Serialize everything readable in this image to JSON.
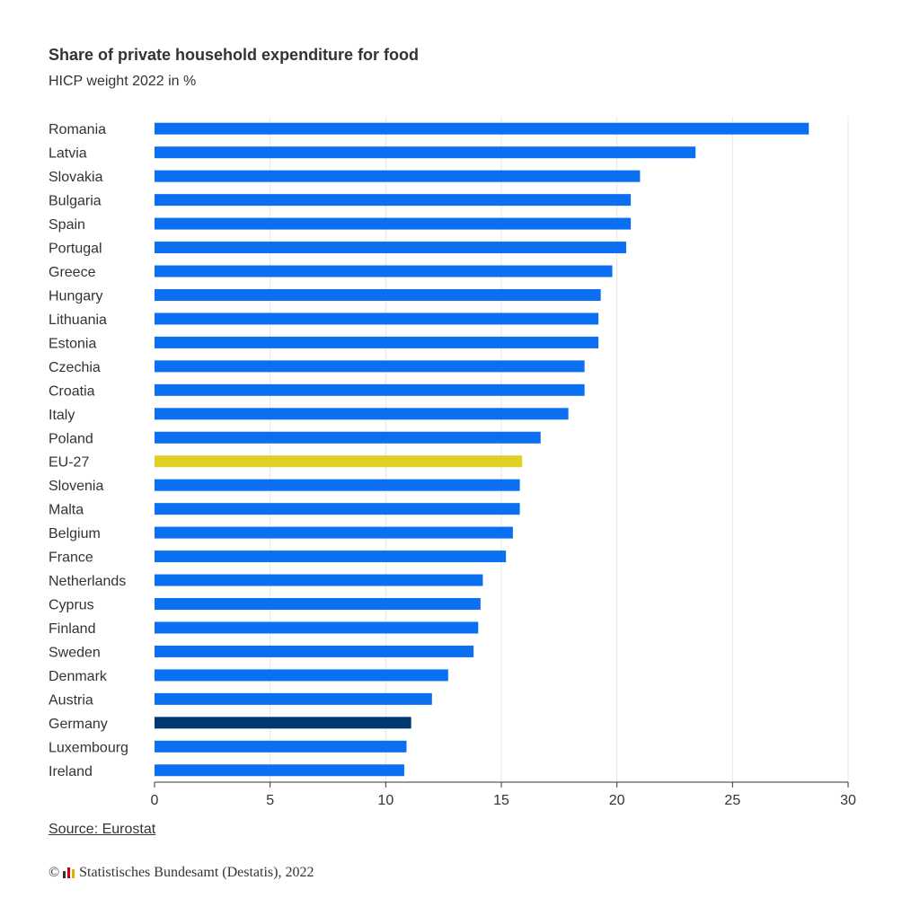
{
  "header": {
    "title": "Share of private household expenditure for food",
    "subtitle": "HICP weight 2022 in %"
  },
  "footer": {
    "source": "Source: Eurostat",
    "copyright_symbol": "©",
    "copyright_text": "Statistisches Bundesamt (Destatis), 2022",
    "logo_icon": "destatis-bar-logo-icon"
  },
  "colors": {
    "default_bar": "#0a6ff0",
    "eu_bar": "#e0cf24",
    "germany_bar": "#003870",
    "grid": "#e6e6e6",
    "axis": "#333333"
  },
  "chart_data": {
    "type": "bar",
    "orientation": "horizontal",
    "title": "Share of private household expenditure for food",
    "subtitle": "HICP weight 2022 in %",
    "categories": [
      "Romania",
      "Latvia",
      "Slovakia",
      "Bulgaria",
      "Spain",
      "Portugal",
      "Greece",
      "Hungary",
      "Lithuania",
      "Estonia",
      "Czechia",
      "Croatia",
      "Italy",
      "Poland",
      "EU-27",
      "Slovenia",
      "Malta",
      "Belgium",
      "France",
      "Netherlands",
      "Cyprus",
      "Finland",
      "Sweden",
      "Denmark",
      "Austria",
      "Germany",
      "Luxembourg",
      "Ireland"
    ],
    "values": [
      28.3,
      23.4,
      21.0,
      20.6,
      20.6,
      20.4,
      19.8,
      19.3,
      19.2,
      19.2,
      18.6,
      18.6,
      17.9,
      16.7,
      15.9,
      15.8,
      15.8,
      15.5,
      15.2,
      14.2,
      14.1,
      14.0,
      13.8,
      12.7,
      12.0,
      11.1,
      10.9,
      10.8
    ],
    "highlight": {
      "EU-27": "eu_bar",
      "Germany": "germany_bar"
    },
    "xlim": [
      0,
      30
    ],
    "xticks": [
      "0",
      "5",
      "10",
      "15",
      "20",
      "25",
      "30"
    ],
    "grid": true,
    "legend": "none"
  }
}
